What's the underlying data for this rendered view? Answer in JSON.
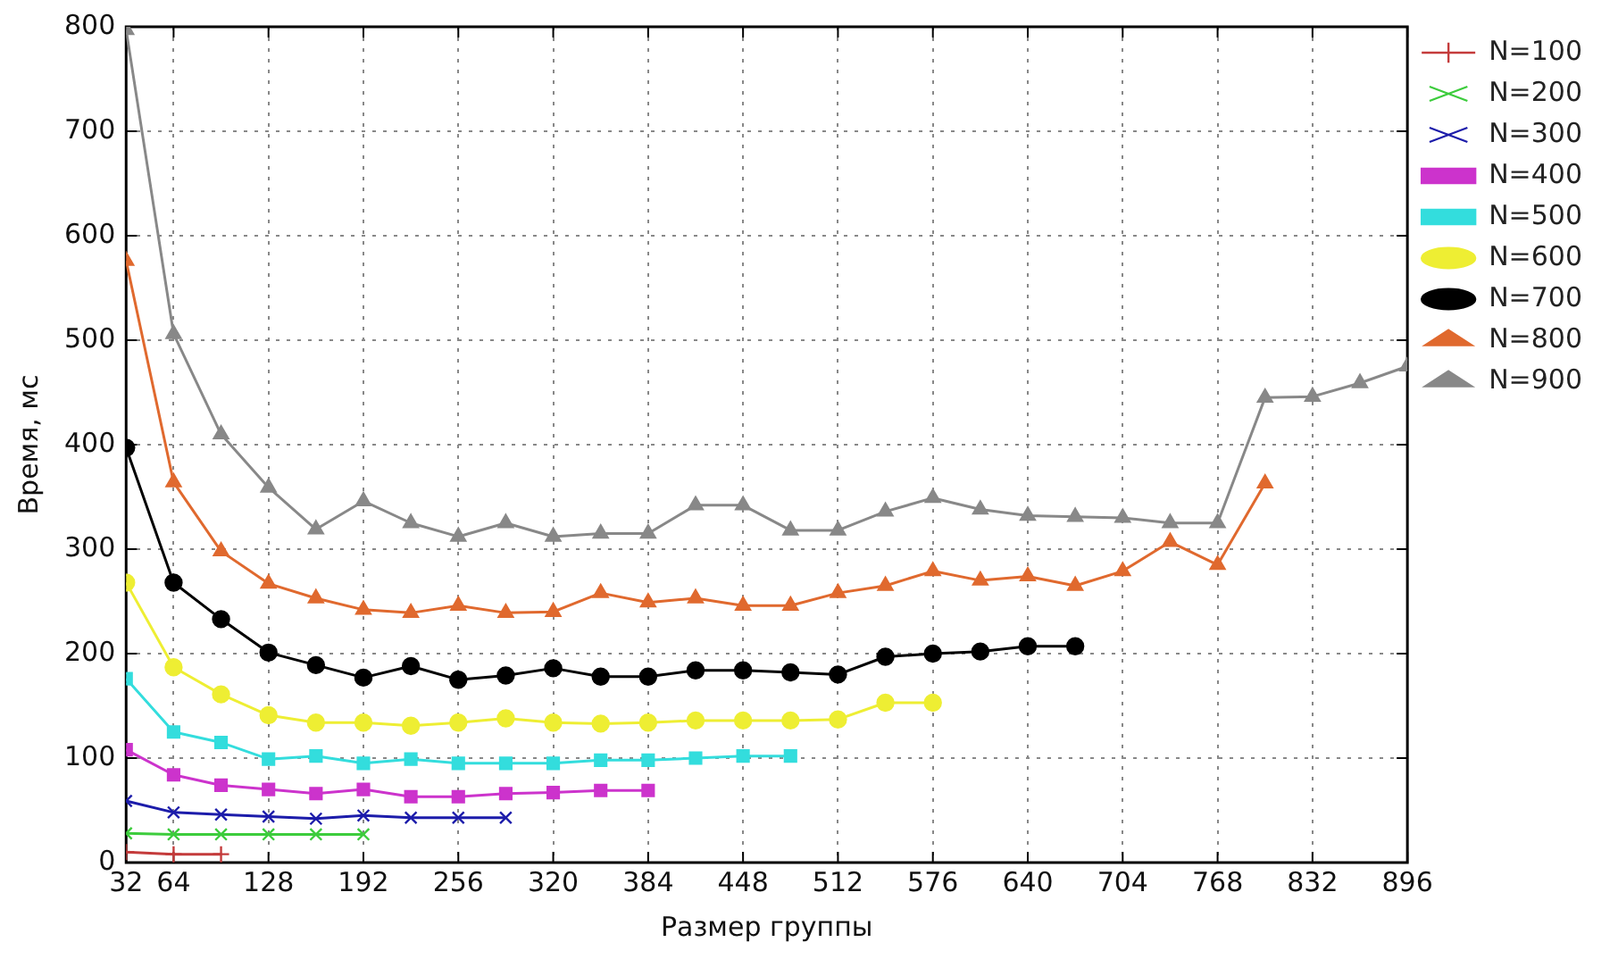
{
  "chart_data": {
    "type": "line",
    "xlabel": "Размер группы",
    "ylabel": "Время, мс",
    "xlim": [
      32,
      896
    ],
    "xticks": [
      32,
      64,
      128,
      192,
      256,
      320,
      384,
      448,
      512,
      576,
      640,
      704,
      768,
      832,
      896
    ],
    "ylim": [
      0,
      800
    ],
    "yticks": [
      0,
      100,
      200,
      300,
      400,
      500,
      600,
      700,
      800
    ],
    "grid": true,
    "legend": "right",
    "line_style": "solid",
    "series": [
      {
        "name": "N=100",
        "color": "#c43b3b",
        "marker": "plus",
        "x": [
          32,
          64,
          96
        ],
        "values": [
          10,
          8,
          8
        ]
      },
      {
        "name": "N=200",
        "color": "#3ccc3c",
        "marker": "cross",
        "x": [
          32,
          64,
          96,
          128,
          160,
          192
        ],
        "values": [
          28,
          27,
          27,
          27,
          27,
          27
        ]
      },
      {
        "name": "N=300",
        "color": "#1c1caa",
        "marker": "cross",
        "x": [
          32,
          64,
          96,
          128,
          160,
          192,
          224,
          256,
          288
        ],
        "values": [
          59,
          48,
          46,
          44,
          42,
          45,
          43,
          43,
          43
        ]
      },
      {
        "name": "N=400",
        "color": "#cc33cc",
        "marker": "square",
        "x": [
          32,
          64,
          96,
          128,
          160,
          192,
          224,
          256,
          288,
          320,
          352,
          384
        ],
        "values": [
          108,
          84,
          74,
          70,
          66,
          70,
          63,
          63,
          66,
          67,
          69,
          69
        ]
      },
      {
        "name": "N=500",
        "color": "#33dddd",
        "marker": "square",
        "x": [
          32,
          64,
          96,
          128,
          160,
          192,
          224,
          256,
          288,
          320,
          352,
          384,
          416,
          448,
          480
        ],
        "values": [
          176,
          125,
          115,
          99,
          102,
          95,
          99,
          95,
          95,
          95,
          98,
          98,
          100,
          102,
          102
        ]
      },
      {
        "name": "N=600",
        "color": "#eeee33",
        "marker": "circle",
        "x": [
          32,
          64,
          96,
          128,
          160,
          192,
          224,
          256,
          288,
          320,
          352,
          384,
          416,
          448,
          480,
          512,
          544,
          576
        ],
        "values": [
          268,
          187,
          161,
          141,
          134,
          134,
          131,
          134,
          138,
          134,
          133,
          134,
          136,
          136,
          136,
          137,
          153,
          153
        ]
      },
      {
        "name": "N=700",
        "color": "#000000",
        "marker": "circle",
        "x": [
          32,
          64,
          96,
          128,
          160,
          192,
          224,
          256,
          288,
          320,
          352,
          384,
          416,
          448,
          480,
          512,
          544,
          576,
          608,
          640,
          672
        ],
        "values": [
          397,
          268,
          233,
          201,
          189,
          177,
          188,
          175,
          179,
          186,
          178,
          178,
          184,
          184,
          182,
          180,
          197,
          200,
          202,
          207,
          207
        ]
      },
      {
        "name": "N=800",
        "color": "#e0692e",
        "marker": "triangle",
        "x": [
          32,
          64,
          96,
          128,
          160,
          192,
          224,
          256,
          288,
          320,
          352,
          384,
          416,
          448,
          480,
          512,
          544,
          576,
          608,
          640,
          672,
          704,
          736,
          768,
          800
        ],
        "values": [
          576,
          364,
          298,
          267,
          253,
          242,
          239,
          246,
          239,
          240,
          258,
          249,
          253,
          246,
          246,
          258,
          265,
          279,
          270,
          274,
          265,
          279,
          307,
          285,
          363
        ]
      },
      {
        "name": "N=900",
        "color": "#888888",
        "marker": "triangle",
        "x": [
          32,
          64,
          96,
          128,
          160,
          192,
          224,
          256,
          288,
          320,
          352,
          384,
          416,
          448,
          480,
          512,
          544,
          576,
          608,
          640,
          672,
          704,
          736,
          768,
          800,
          832,
          864,
          896
        ],
        "values": [
          797,
          506,
          410,
          359,
          319,
          346,
          325,
          312,
          325,
          312,
          315,
          315,
          342,
          342,
          318,
          318,
          336,
          349,
          338,
          332,
          331,
          330,
          325,
          325,
          445,
          446,
          459,
          475
        ]
      }
    ]
  }
}
